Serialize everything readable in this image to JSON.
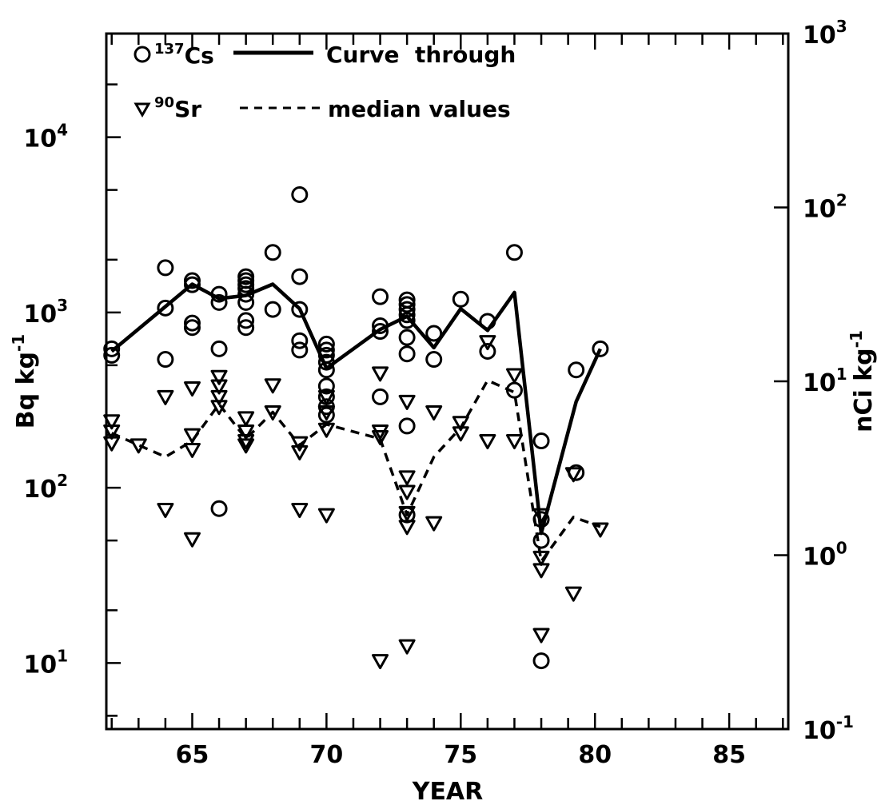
{
  "chart_data": {
    "type": "scatter",
    "title": "",
    "xlabel": "YEAR",
    "ylabel_left": "Bq kg",
    "ylabel_left_sup": "-1",
    "ylabel_right": "nCi kg",
    "ylabel_right_sup": "-1",
    "xlim": [
      61.8,
      87.2
    ],
    "ylim_left_bq": [
      4.2,
      39000
    ],
    "ylim_right_nci": [
      0.1,
      1000
    ],
    "y_scale": "log",
    "grid": false,
    "legend_position": "top-left",
    "x_ticks": [
      {
        "value": 65,
        "label": "65"
      },
      {
        "value": 70,
        "label": "70"
      },
      {
        "value": 75,
        "label": "75"
      },
      {
        "value": 80,
        "label": "80"
      },
      {
        "value": 85,
        "label": "85"
      }
    ],
    "y_left_ticks": [
      {
        "value": 10,
        "base": "10",
        "exp": "1"
      },
      {
        "value": 100,
        "base": "10",
        "exp": "2"
      },
      {
        "value": 1000,
        "base": "10",
        "exp": "3"
      },
      {
        "value": 10000,
        "base": "10",
        "exp": "4"
      }
    ],
    "y_right_ticks": [
      {
        "value": 0.1,
        "base": "10",
        "exp": "-1"
      },
      {
        "value": 1,
        "base": "10",
        "exp": "0"
      },
      {
        "value": 10,
        "base": "10",
        "exp": "1"
      },
      {
        "value": 100,
        "base": "10",
        "exp": "2"
      },
      {
        "value": 1000,
        "base": "10",
        "exp": "3"
      }
    ],
    "legend": {
      "cs_label_sup": "137",
      "cs_label": "Cs",
      "sr_label_sup": "90",
      "sr_label": "Sr",
      "solid_text": "Curve  through",
      "dashed_text": "median values"
    },
    "series": [
      {
        "name": "137Cs",
        "marker": "circle",
        "points": [
          [
            62,
            620
          ],
          [
            62,
            570
          ],
          [
            64,
            1060
          ],
          [
            64,
            1800
          ],
          [
            64,
            540
          ],
          [
            65,
            1520
          ],
          [
            65,
            1440
          ],
          [
            65,
            870
          ],
          [
            65,
            820
          ],
          [
            66,
            1270
          ],
          [
            66,
            1140
          ],
          [
            66,
            620
          ],
          [
            66,
            76
          ],
          [
            67,
            1600
          ],
          [
            67,
            1520
          ],
          [
            67,
            1440
          ],
          [
            67,
            1370
          ],
          [
            67,
            1270
          ],
          [
            67,
            1140
          ],
          [
            67,
            900
          ],
          [
            67,
            820
          ],
          [
            68,
            2200
          ],
          [
            68,
            1040
          ],
          [
            69,
            4700
          ],
          [
            69,
            1600
          ],
          [
            69,
            1040
          ],
          [
            69,
            690
          ],
          [
            69,
            610
          ],
          [
            70,
            660
          ],
          [
            70,
            610
          ],
          [
            70,
            570
          ],
          [
            70,
            520
          ],
          [
            70,
            470
          ],
          [
            70,
            380
          ],
          [
            70,
            330
          ],
          [
            70,
            290
          ],
          [
            70,
            260
          ],
          [
            72,
            1230
          ],
          [
            72,
            840
          ],
          [
            72,
            780
          ],
          [
            72,
            330
          ],
          [
            73,
            1180
          ],
          [
            73,
            1110
          ],
          [
            73,
            1040
          ],
          [
            73,
            970
          ],
          [
            73,
            900
          ],
          [
            73,
            720
          ],
          [
            73,
            580
          ],
          [
            73,
            225
          ],
          [
            73,
            70
          ],
          [
            74,
            760
          ],
          [
            74,
            540
          ],
          [
            75,
            1190
          ],
          [
            76,
            890
          ],
          [
            76,
            600
          ],
          [
            77,
            2200
          ],
          [
            77,
            360
          ],
          [
            78,
            185
          ],
          [
            78,
            66
          ],
          [
            78,
            50
          ],
          [
            78,
            10.3
          ],
          [
            79.3,
            470
          ],
          [
            79.3,
            122
          ],
          [
            80.2,
            620
          ]
        ]
      },
      {
        "name": "90Sr",
        "marker": "triangle-down",
        "points": [
          [
            62,
            240
          ],
          [
            62,
            210
          ],
          [
            62,
            180
          ],
          [
            63,
            175
          ],
          [
            64,
            330
          ],
          [
            64,
            75
          ],
          [
            65,
            370
          ],
          [
            65,
            200
          ],
          [
            65,
            165
          ],
          [
            65,
            51
          ],
          [
            66,
            430
          ],
          [
            66,
            380
          ],
          [
            66,
            330
          ],
          [
            66,
            290
          ],
          [
            67,
            250
          ],
          [
            67,
            210
          ],
          [
            67,
            185
          ],
          [
            67,
            175
          ],
          [
            68,
            385
          ],
          [
            68,
            270
          ],
          [
            69,
            180
          ],
          [
            69,
            160
          ],
          [
            69,
            75
          ],
          [
            70,
            330
          ],
          [
            70,
            270
          ],
          [
            70,
            215
          ],
          [
            70,
            70
          ],
          [
            72,
            450
          ],
          [
            72,
            210
          ],
          [
            72,
            195
          ],
          [
            72,
            10.3
          ],
          [
            73,
            310
          ],
          [
            73,
            115
          ],
          [
            73,
            95
          ],
          [
            73,
            72
          ],
          [
            73,
            60
          ],
          [
            73,
            12.5
          ],
          [
            74,
            270
          ],
          [
            74,
            63
          ],
          [
            75,
            235
          ],
          [
            75,
            205
          ],
          [
            76,
            680
          ],
          [
            76,
            185
          ],
          [
            77,
            440
          ],
          [
            77,
            185
          ],
          [
            78,
            70
          ],
          [
            78,
            40
          ],
          [
            78,
            34
          ],
          [
            78,
            14.5
          ],
          [
            79.2,
            120
          ],
          [
            79.2,
            25
          ],
          [
            80.2,
            58
          ]
        ]
      },
      {
        "name": "Curve through median values (137Cs)",
        "style": "solid",
        "points": [
          [
            62,
            600
          ],
          [
            64,
            1080
          ],
          [
            65,
            1450
          ],
          [
            66,
            1200
          ],
          [
            67,
            1250
          ],
          [
            68,
            1450
          ],
          [
            69,
            1050
          ],
          [
            70,
            480
          ],
          [
            72,
            800
          ],
          [
            73,
            950
          ],
          [
            74,
            630
          ],
          [
            75,
            1050
          ],
          [
            76,
            790
          ],
          [
            77,
            1300
          ],
          [
            78,
            55
          ],
          [
            79.3,
            310
          ],
          [
            80.2,
            620
          ]
        ]
      },
      {
        "name": "Curve through median values (90Sr)",
        "style": "dashed",
        "points": [
          [
            62,
            205
          ],
          [
            63,
            175
          ],
          [
            64,
            150
          ],
          [
            65,
            185
          ],
          [
            66,
            300
          ],
          [
            67,
            190
          ],
          [
            68,
            270
          ],
          [
            69,
            175
          ],
          [
            70,
            230
          ],
          [
            72,
            190
          ],
          [
            73,
            70
          ],
          [
            74,
            150
          ],
          [
            75,
            220
          ],
          [
            76,
            410
          ],
          [
            77,
            350
          ],
          [
            78,
            38
          ],
          [
            79.2,
            68
          ],
          [
            80.2,
            60
          ]
        ]
      }
    ]
  }
}
